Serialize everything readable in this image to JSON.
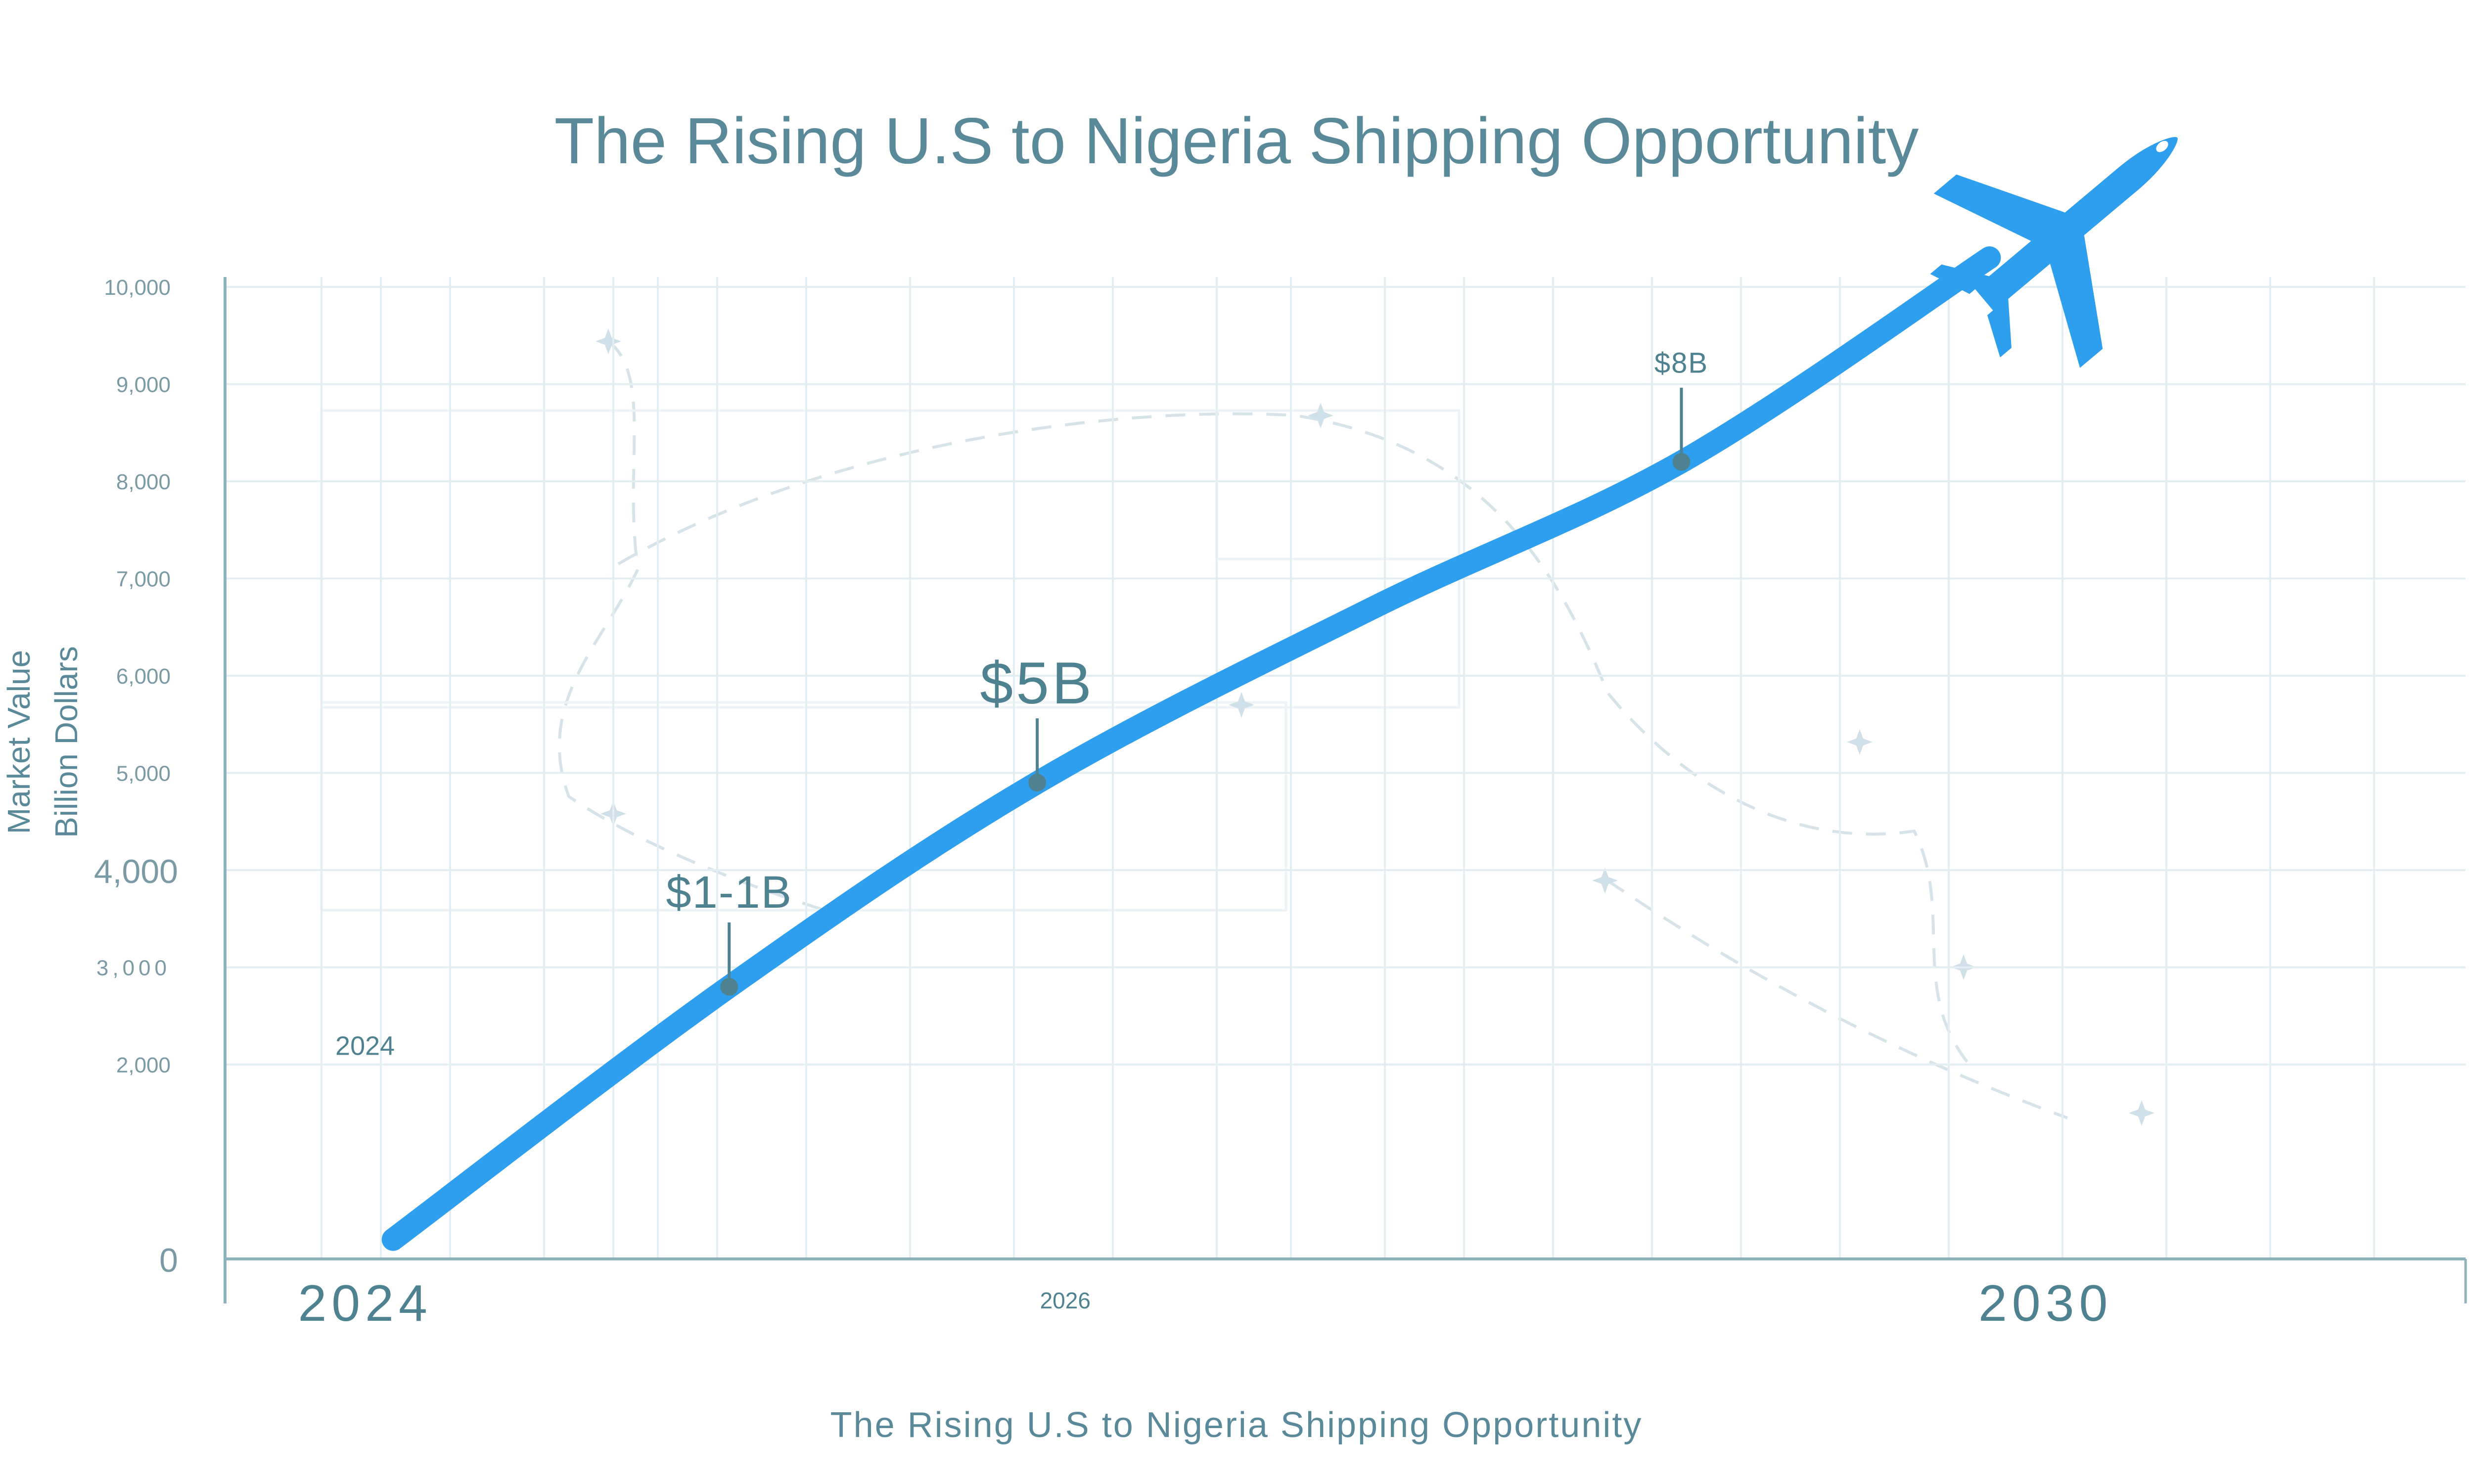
{
  "colors": {
    "accent": "#2e9eee",
    "title": "#5a8a9a",
    "axis": "#8fb3bd",
    "grid": "#e3eef2",
    "tick_label": "#7a9aa6",
    "annotation": "#4f8291",
    "faint_route": "#d6e4ea",
    "faint_star": "#cfe0e8"
  },
  "icons": {
    "plane": "airplane-icon",
    "route_star": "star-icon"
  },
  "chart_data": {
    "type": "line",
    "title": "The Rising U.S to Nigeria Shipping Opportunity",
    "caption": "The Rising U.S to Nigeria Shipping Opportunity",
    "ylabel_lines": [
      "Market Value",
      "Billion Dollars"
    ],
    "ylim": [
      0,
      10000
    ],
    "xlim": [
      2023.5,
      2031.5
    ],
    "grid": true,
    "y_ticks": [
      {
        "value": 0,
        "label": "0",
        "big": true
      },
      {
        "value": 2000,
        "label": "2,000",
        "big": false
      },
      {
        "value": 3000,
        "label": "3,000",
        "big": false
      },
      {
        "value": 4000,
        "label": "4,000",
        "big": true
      },
      {
        "value": 5000,
        "label": "5,000",
        "big": false
      },
      {
        "value": 6000,
        "label": "6,000",
        "big": false
      },
      {
        "value": 7000,
        "label": "7,000",
        "big": false
      },
      {
        "value": 8000,
        "label": "8,000",
        "big": false
      },
      {
        "value": 9000,
        "label": "9,000",
        "big": false
      },
      {
        "value": 10000,
        "label": "10,000",
        "big": false
      }
    ],
    "x_ticks": [
      {
        "value": 2024,
        "label": "2024",
        "big": true
      },
      {
        "value": 2026.5,
        "label": "2026",
        "big": false
      },
      {
        "value": 2030,
        "label": "2030",
        "big": true
      }
    ],
    "extra_labels": [
      {
        "text": "2024",
        "x": 2024,
        "y": 2100
      }
    ],
    "series": [
      {
        "x": [
          2024.1,
          2025.3,
          2026.4,
          2027.6,
          2028.7,
          2029.8
        ],
        "y": [
          200,
          2800,
          4900,
          6700,
          8200,
          10300
        ]
      }
    ],
    "annotations": [
      {
        "label": "$1-1B",
        "x": 2025.3,
        "y": 2800,
        "size": "large"
      },
      {
        "label": "$5B",
        "x": 2026.4,
        "y": 4900,
        "size": "xlarge"
      },
      {
        "label": "$8B",
        "x": 2028.7,
        "y": 8200,
        "size": "small"
      }
    ]
  }
}
